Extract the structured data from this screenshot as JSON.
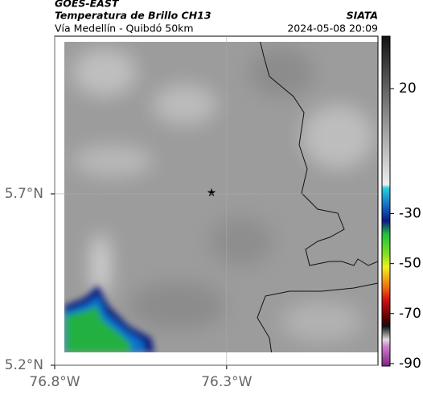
{
  "header": {
    "source": "GOES-EAST",
    "product": "Temperatura de Brillo CH13",
    "region": "Vía Medellín - Quibdó 50km",
    "agency": "SIATA",
    "timestamp": "2024-05-08 20:09"
  },
  "map": {
    "xlim": [
      -76.8,
      -75.86
    ],
    "ylim": [
      5.2,
      6.16
    ],
    "xticks": [
      {
        "value": -76.8,
        "label": "76.8°W"
      },
      {
        "value": -76.3,
        "label": "76.3°W"
      }
    ],
    "yticks": [
      {
        "value": 5.2,
        "label": "5.2°N"
      },
      {
        "value": 5.7,
        "label": "5.7°N"
      }
    ],
    "colorbar": {
      "lim": [
        -91,
        41
      ],
      "ticks": [
        20,
        -30,
        -50,
        -70,
        -90
      ]
    }
  }
}
